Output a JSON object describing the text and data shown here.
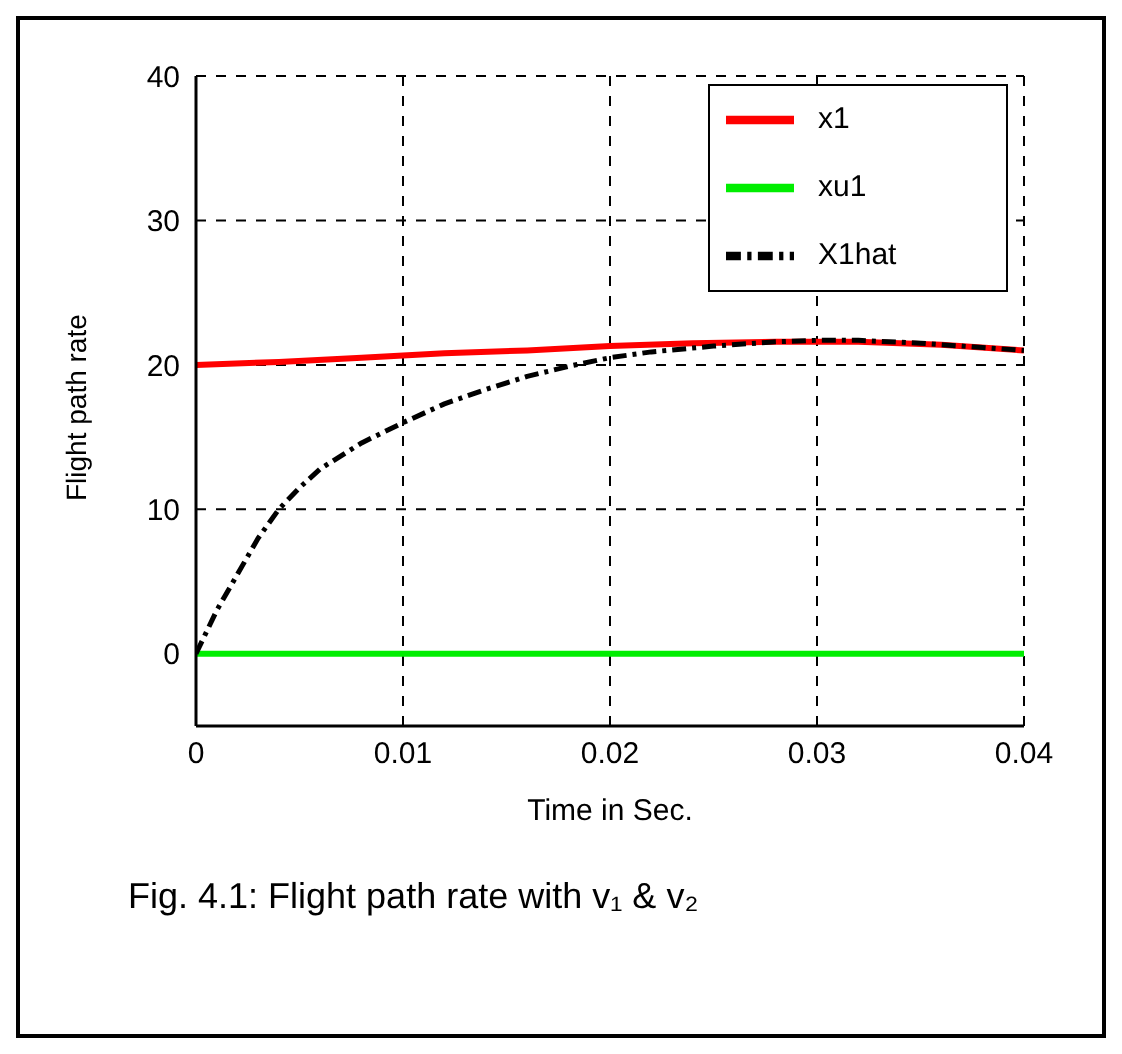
{
  "chart_data": {
    "type": "line",
    "xlabel": "Time in Sec.",
    "ylabel": "Flight path rate",
    "xlim": [
      0,
      0.04
    ],
    "xticks": [
      0,
      0.01,
      0.02,
      0.03,
      0.04
    ],
    "ylim": [
      -5,
      40
    ],
    "yticks": [
      0,
      10,
      20,
      30,
      40
    ],
    "grid": true,
    "legend": "top right",
    "annotations": [
      "Fig. 4.1: Flight path rate with v₁ & v₂"
    ],
    "series": [
      {
        "name": "x1",
        "color": "#ff0000",
        "line_style": "solid",
        "x": [
          0,
          0.004,
          0.008,
          0.012,
          0.016,
          0.02,
          0.024,
          0.028,
          0.032,
          0.036,
          0.04
        ],
        "values": [
          20,
          20.2,
          20.5,
          20.8,
          21,
          21.3,
          21.5,
          21.6,
          21.6,
          21.4,
          21
        ]
      },
      {
        "name": "xu1",
        "color": "#00ee00",
        "line_style": "solid",
        "x": [
          0,
          0.04
        ],
        "values": [
          0,
          0
        ]
      },
      {
        "name": "X1hat",
        "color": "#000000",
        "line_style": "dashed",
        "x": [
          0,
          0.001,
          0.002,
          0.003,
          0.004,
          0.005,
          0.006,
          0.008,
          0.01,
          0.012,
          0.014,
          0.016,
          0.018,
          0.02,
          0.022,
          0.025,
          0.028,
          0.03,
          0.032,
          0.035,
          0.038,
          0.04
        ],
        "values": [
          0,
          3,
          5.5,
          8,
          10,
          11.5,
          12.8,
          14.6,
          16,
          17.3,
          18.3,
          19.2,
          19.9,
          20.5,
          20.9,
          21.3,
          21.6,
          21.7,
          21.7,
          21.5,
          21.2,
          21
        ]
      }
    ]
  }
}
